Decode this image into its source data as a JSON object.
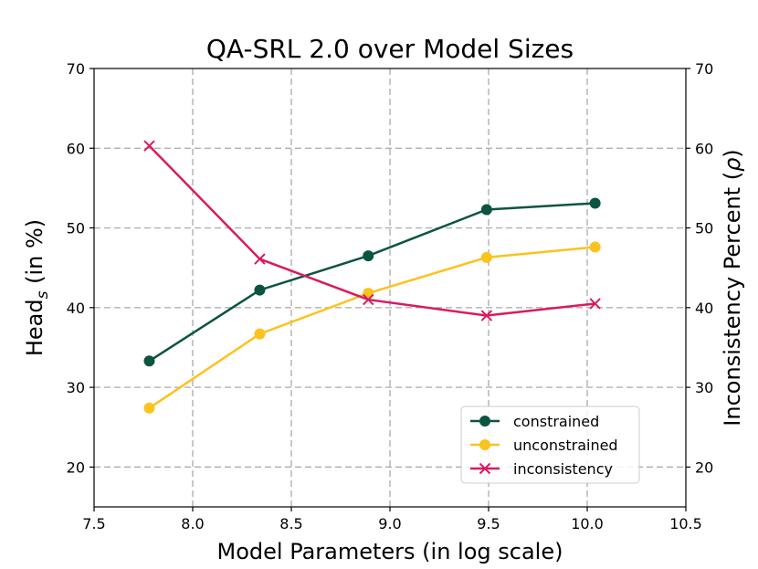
{
  "chart_data": {
    "type": "line",
    "title": "QA-SRL 2.0 over Model Sizes",
    "xlabel": "Model Parameters (in log scale)",
    "ylabel_left": {
      "main": "Head",
      "sub": "s",
      "rest": " (in %)"
    },
    "ylabel_right": {
      "main": "Inconsistency Percent (",
      "symbol": "ρ",
      "rest": ")"
    },
    "xlim": [
      7.5,
      10.5
    ],
    "ylim": [
      15,
      70
    ],
    "xticks": [
      "7.5",
      "8.0",
      "8.5",
      "9.0",
      "9.5",
      "10.0",
      "10.5"
    ],
    "yticks": [
      "20",
      "30",
      "40",
      "50",
      "60",
      "70"
    ],
    "grid": true,
    "legend_position": "lower-right",
    "x": [
      7.78,
      8.34,
      8.89,
      9.49,
      10.04
    ],
    "series": [
      {
        "name": "constrained",
        "color": "#0b5442",
        "marker": "circle",
        "values": [
          33.3,
          42.2,
          46.5,
          52.3,
          53.1
        ]
      },
      {
        "name": "unconstrained",
        "color": "#fcc21d",
        "marker": "circle",
        "values": [
          27.4,
          36.7,
          41.8,
          46.3,
          47.6
        ]
      },
      {
        "name": "inconsistency",
        "color": "#d81b60",
        "marker": "x",
        "values": [
          60.3,
          46.1,
          41.0,
          39.0,
          40.5
        ]
      }
    ]
  }
}
